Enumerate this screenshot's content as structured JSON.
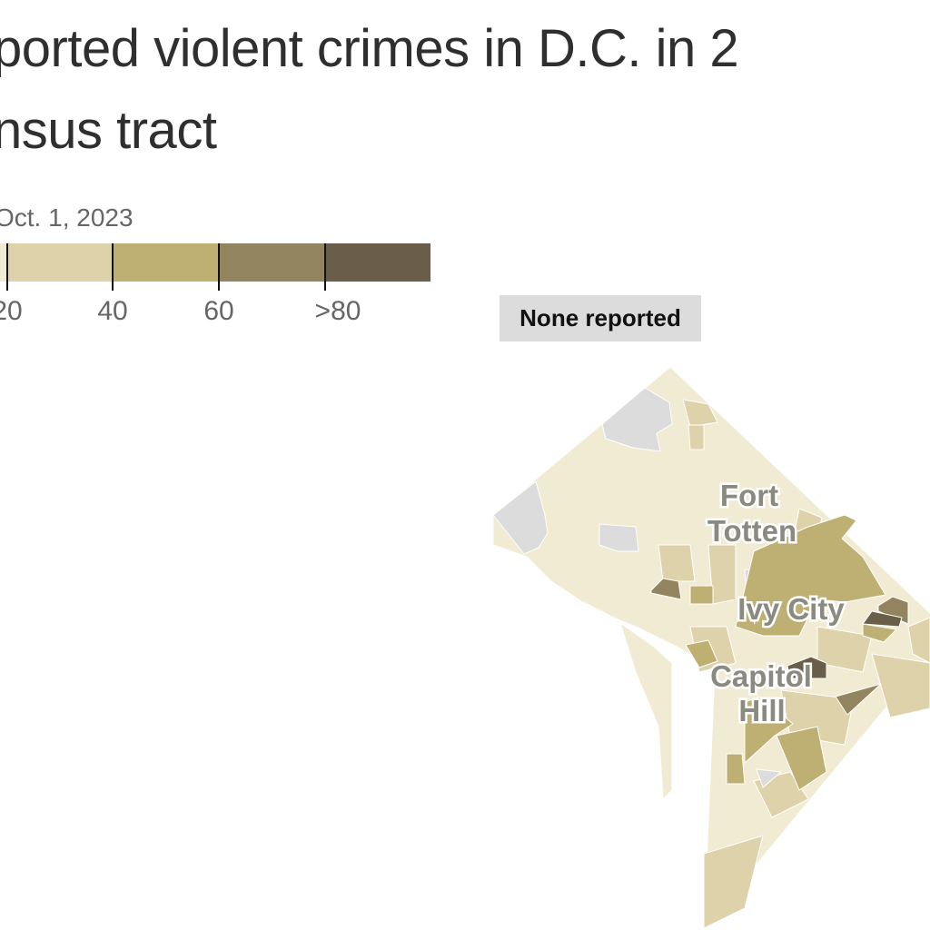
{
  "title": {
    "line1": "ported violent crimes in D.C. in 2",
    "line2": "nsus tract"
  },
  "subtitle": "Oct. 1, 2023",
  "legend": {
    "colors": [
      "#f2ebd3",
      "#ded2aa",
      "#beaf72",
      "#92845e",
      "#6a5e4b"
    ],
    "tick_labels": [
      "20",
      "40",
      "60",
      ">80"
    ],
    "none_label": "None reported",
    "none_color": "#dcdcdc"
  },
  "map": {
    "labels": {
      "fort_totten_1": "Fort",
      "fort_totten_2": "Totten",
      "ivy_city": "Ivy City",
      "capitol_hill_1": "Capitol",
      "capitol_hill_2": "Hill"
    }
  }
}
